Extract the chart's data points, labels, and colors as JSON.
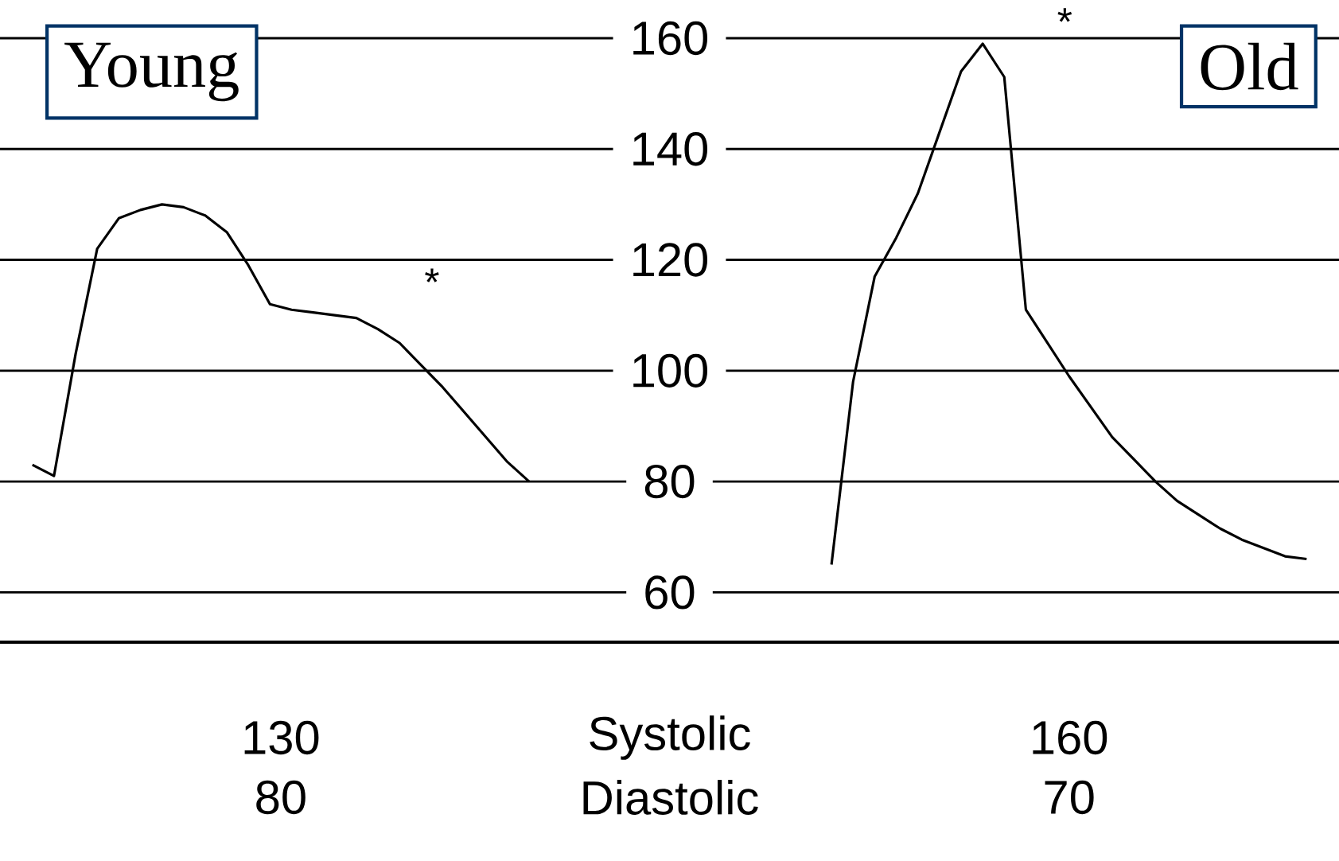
{
  "chart_data": {
    "type": "line",
    "categories": [
      null,
      null,
      null,
      null,
      null,
      null,
      null,
      null,
      null,
      null,
      null,
      null,
      null,
      null,
      null,
      null,
      null,
      null,
      null,
      null,
      null,
      null,
      null,
      null,
      null,
      null,
      null,
      null,
      null,
      null,
      null,
      null,
      null,
      null,
      null,
      null,
      null,
      null,
      null,
      null,
      null,
      null,
      null,
      null,
      null,
      null,
      null,
      null,
      null,
      null,
      null,
      null,
      null,
      null,
      null,
      null,
      null,
      null,
      null,
      null,
      null,
      null
    ],
    "series": [
      {
        "name": "Young",
        "color": "#000000",
        "values": [
          null,
          83,
          81,
          103,
          122,
          127.5,
          129,
          130,
          129.5,
          128,
          125,
          119,
          112,
          111,
          110.5,
          110,
          109.5,
          107.5,
          105,
          101,
          97,
          92.5,
          88,
          83.5,
          80,
          null,
          null,
          null,
          null,
          null,
          null,
          null,
          null,
          null,
          null,
          null,
          null,
          null,
          null,
          null,
          null,
          null,
          null,
          null,
          null,
          null,
          null,
          null,
          null,
          null,
          null,
          null,
          null,
          null,
          null,
          null,
          null,
          null,
          null,
          null,
          null,
          null
        ]
      },
      {
        "name": "Old",
        "color": "#000000",
        "values": [
          null,
          null,
          null,
          null,
          null,
          null,
          null,
          null,
          null,
          null,
          null,
          null,
          null,
          null,
          null,
          null,
          null,
          null,
          null,
          null,
          null,
          null,
          null,
          null,
          null,
          null,
          null,
          null,
          null,
          null,
          null,
          null,
          null,
          null,
          null,
          null,
          null,
          null,
          65,
          98,
          117,
          124,
          132,
          143,
          154,
          159,
          153,
          111,
          105,
          99,
          93.5,
          88,
          84,
          80,
          76.5,
          74,
          71.5,
          69.5,
          68,
          66.5,
          66,
          null
        ]
      }
    ],
    "ylim": [
      51,
      160
    ],
    "yticks": [
      60,
      80,
      100,
      120,
      140,
      160
    ],
    "grid": "y",
    "tick_labels": "y",
    "legend": "top",
    "annotations": [
      "130",
      "80",
      "Systolic",
      "Diastolic",
      "160",
      "70",
      "*",
      "*"
    ]
  }
}
